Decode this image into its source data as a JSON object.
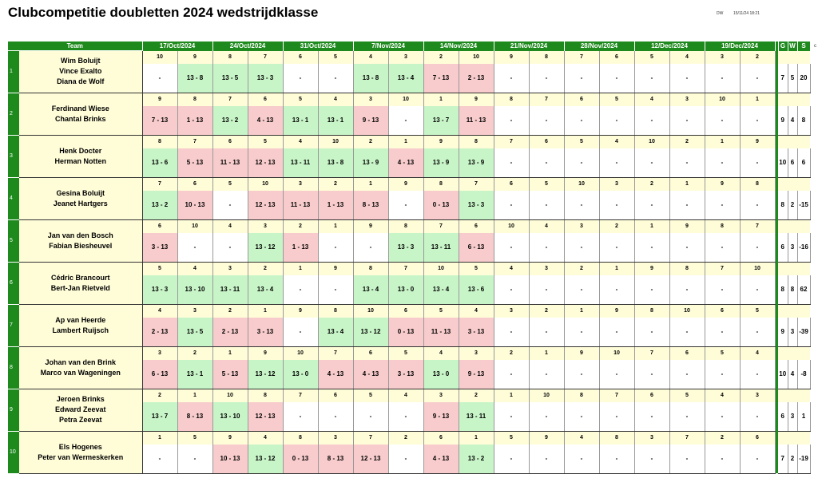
{
  "title": "Clubcompetitie doubletten 2024 wedstrijdklasse",
  "header_small": {
    "user": "DW",
    "datetime": "15/11/24 18:21"
  },
  "columns": {
    "team": "Team",
    "dates": [
      "17/Oct/2024",
      "24/Oct/2024",
      "31/Oct/2024",
      "7/Nov/2024",
      "14/Nov/2024",
      "21/Nov/2024",
      "28/Nov/2024",
      "12/Dec/2024",
      "19/Dec/2024"
    ],
    "stats": [
      "G",
      "W",
      "S"
    ],
    "extra": "c"
  },
  "teams": [
    {
      "num": "1",
      "players": [
        "Wim  Boluijt",
        "Vince  Exalto",
        "Diana de Wolf"
      ],
      "opp": [
        "10",
        "9",
        "8",
        "7",
        "6",
        "5",
        "4",
        "3",
        "2",
        "10",
        "9",
        "8",
        "7",
        "6",
        "5",
        "4",
        "3",
        "2"
      ],
      "scores": [
        [
          "-",
          "n"
        ],
        [
          "13 - 8",
          "w"
        ],
        [
          "13 - 5",
          "w"
        ],
        [
          "13 - 3",
          "w"
        ],
        [
          "-",
          "n"
        ],
        [
          "-",
          "n"
        ],
        [
          "13 - 8",
          "w"
        ],
        [
          "13 - 4",
          "w"
        ],
        [
          "7 - 13",
          "l"
        ],
        [
          "2 - 13",
          "l"
        ],
        [
          "-",
          "n"
        ],
        [
          "-",
          "n"
        ],
        [
          "-",
          "n"
        ],
        [
          "-",
          "n"
        ],
        [
          "-",
          "n"
        ],
        [
          "-",
          "n"
        ],
        [
          "-",
          "n"
        ],
        [
          "-",
          "n"
        ]
      ],
      "stats": [
        "7",
        "5",
        "20"
      ]
    },
    {
      "num": "2",
      "players": [
        "Ferdinand Wiese",
        "Chantal Brinks"
      ],
      "opp": [
        "9",
        "8",
        "7",
        "6",
        "5",
        "4",
        "3",
        "10",
        "1",
        "9",
        "8",
        "7",
        "6",
        "5",
        "4",
        "3",
        "10",
        "1"
      ],
      "scores": [
        [
          "7 - 13",
          "l"
        ],
        [
          "1 - 13",
          "l"
        ],
        [
          "13 - 2",
          "w"
        ],
        [
          "4 - 13",
          "l"
        ],
        [
          "13 - 1",
          "w"
        ],
        [
          "13 - 1",
          "w"
        ],
        [
          "9 - 13",
          "l"
        ],
        [
          "-",
          "n"
        ],
        [
          "13 - 7",
          "w"
        ],
        [
          "11 - 13",
          "l"
        ],
        [
          "-",
          "n"
        ],
        [
          "-",
          "n"
        ],
        [
          "-",
          "n"
        ],
        [
          "-",
          "n"
        ],
        [
          "-",
          "n"
        ],
        [
          "-",
          "n"
        ],
        [
          "-",
          "n"
        ],
        [
          "-",
          "n"
        ]
      ],
      "stats": [
        "9",
        "4",
        "8"
      ]
    },
    {
      "num": "3",
      "players": [
        "Henk  Docter",
        "Herman Notten"
      ],
      "opp": [
        "8",
        "7",
        "6",
        "5",
        "4",
        "10",
        "2",
        "1",
        "9",
        "8",
        "7",
        "6",
        "5",
        "4",
        "10",
        "2",
        "1",
        "9"
      ],
      "scores": [
        [
          "13 - 6",
          "w"
        ],
        [
          "5 - 13",
          "l"
        ],
        [
          "11 - 13",
          "l"
        ],
        [
          "12 - 13",
          "l"
        ],
        [
          "13 - 11",
          "w"
        ],
        [
          "13 - 8",
          "w"
        ],
        [
          "13 - 9",
          "w"
        ],
        [
          "4 - 13",
          "l"
        ],
        [
          "13 - 9",
          "w"
        ],
        [
          "13 - 9",
          "w"
        ],
        [
          "-",
          "n"
        ],
        [
          "-",
          "n"
        ],
        [
          "-",
          "n"
        ],
        [
          "-",
          "n"
        ],
        [
          "-",
          "n"
        ],
        [
          "-",
          "n"
        ],
        [
          "-",
          "n"
        ],
        [
          "-",
          "n"
        ]
      ],
      "stats": [
        "10",
        "6",
        "6"
      ]
    },
    {
      "num": "4",
      "players": [
        "Gesina Boluijt",
        "Jeanet  Hartgers"
      ],
      "opp": [
        "7",
        "6",
        "5",
        "10",
        "3",
        "2",
        "1",
        "9",
        "8",
        "7",
        "6",
        "5",
        "10",
        "3",
        "2",
        "1",
        "9",
        "8"
      ],
      "scores": [
        [
          "13 - 2",
          "w"
        ],
        [
          "10 - 13",
          "l"
        ],
        [
          "-",
          "n"
        ],
        [
          "12 - 13",
          "l"
        ],
        [
          "11 - 13",
          "l"
        ],
        [
          "1 - 13",
          "l"
        ],
        [
          "8 - 13",
          "l"
        ],
        [
          "-",
          "n"
        ],
        [
          "0 - 13",
          "l"
        ],
        [
          "13 - 3",
          "w"
        ],
        [
          "-",
          "n"
        ],
        [
          "-",
          "n"
        ],
        [
          "-",
          "n"
        ],
        [
          "-",
          "n"
        ],
        [
          "-",
          "n"
        ],
        [
          "-",
          "n"
        ],
        [
          "-",
          "n"
        ],
        [
          "-",
          "n"
        ]
      ],
      "stats": [
        "8",
        "2",
        "-15"
      ]
    },
    {
      "num": "5",
      "players": [
        "Jan van den Bosch",
        "Fabian  Biesheuvel"
      ],
      "opp": [
        "6",
        "10",
        "4",
        "3",
        "2",
        "1",
        "9",
        "8",
        "7",
        "6",
        "10",
        "4",
        "3",
        "2",
        "1",
        "9",
        "8",
        "7"
      ],
      "scores": [
        [
          "3 - 13",
          "l"
        ],
        [
          "-",
          "n"
        ],
        [
          "-",
          "n"
        ],
        [
          "13 - 12",
          "w"
        ],
        [
          "1 - 13",
          "l"
        ],
        [
          "-",
          "n"
        ],
        [
          "-",
          "n"
        ],
        [
          "13 - 3",
          "w"
        ],
        [
          "13 - 11",
          "w"
        ],
        [
          "6 - 13",
          "l"
        ],
        [
          "-",
          "n"
        ],
        [
          "-",
          "n"
        ],
        [
          "-",
          "n"
        ],
        [
          "-",
          "n"
        ],
        [
          "-",
          "n"
        ],
        [
          "-",
          "n"
        ],
        [
          "-",
          "n"
        ],
        [
          "-",
          "n"
        ]
      ],
      "stats": [
        "6",
        "3",
        "-16"
      ]
    },
    {
      "num": "6",
      "players": [
        "Cédric Brancourt",
        "Bert-Jan Rietveld"
      ],
      "opp": [
        "5",
        "4",
        "3",
        "2",
        "1",
        "9",
        "8",
        "7",
        "10",
        "5",
        "4",
        "3",
        "2",
        "1",
        "9",
        "8",
        "7",
        "10"
      ],
      "scores": [
        [
          "13 - 3",
          "w"
        ],
        [
          "13 - 10",
          "w"
        ],
        [
          "13 - 11",
          "w"
        ],
        [
          "13 - 4",
          "w"
        ],
        [
          "-",
          "n"
        ],
        [
          "-",
          "n"
        ],
        [
          "13 - 4",
          "w"
        ],
        [
          "13 - 0",
          "w"
        ],
        [
          "13 - 4",
          "w"
        ],
        [
          "13 - 6",
          "w"
        ],
        [
          "-",
          "n"
        ],
        [
          "-",
          "n"
        ],
        [
          "-",
          "n"
        ],
        [
          "-",
          "n"
        ],
        [
          "-",
          "n"
        ],
        [
          "-",
          "n"
        ],
        [
          "-",
          "n"
        ],
        [
          "-",
          "n"
        ]
      ],
      "stats": [
        "8",
        "8",
        "62"
      ]
    },
    {
      "num": "7",
      "players": [
        "Ap van Heerde",
        "Lambert Ruijsch"
      ],
      "opp": [
        "4",
        "3",
        "2",
        "1",
        "9",
        "8",
        "10",
        "6",
        "5",
        "4",
        "3",
        "2",
        "1",
        "9",
        "8",
        "10",
        "6",
        "5"
      ],
      "scores": [
        [
          "2 - 13",
          "l"
        ],
        [
          "13 - 5",
          "w"
        ],
        [
          "2 - 13",
          "l"
        ],
        [
          "3 - 13",
          "l"
        ],
        [
          "-",
          "n"
        ],
        [
          "13 - 4",
          "w"
        ],
        [
          "13 - 12",
          "w"
        ],
        [
          "0 - 13",
          "l"
        ],
        [
          "11 - 13",
          "l"
        ],
        [
          "3 - 13",
          "l"
        ],
        [
          "-",
          "n"
        ],
        [
          "-",
          "n"
        ],
        [
          "-",
          "n"
        ],
        [
          "-",
          "n"
        ],
        [
          "-",
          "n"
        ],
        [
          "-",
          "n"
        ],
        [
          "-",
          "n"
        ],
        [
          "-",
          "n"
        ]
      ],
      "stats": [
        "9",
        "3",
        "-39"
      ]
    },
    {
      "num": "8",
      "players": [
        "Johan van den Brink",
        "Marco van Wageningen"
      ],
      "opp": [
        "3",
        "2",
        "1",
        "9",
        "10",
        "7",
        "6",
        "5",
        "4",
        "3",
        "2",
        "1",
        "9",
        "10",
        "7",
        "6",
        "5",
        "4"
      ],
      "scores": [
        [
          "6 - 13",
          "l"
        ],
        [
          "13 - 1",
          "w"
        ],
        [
          "5 - 13",
          "l"
        ],
        [
          "13 - 12",
          "w"
        ],
        [
          "13 - 0",
          "w"
        ],
        [
          "4 - 13",
          "l"
        ],
        [
          "4 - 13",
          "l"
        ],
        [
          "3 - 13",
          "l"
        ],
        [
          "13 - 0",
          "w"
        ],
        [
          "9 - 13",
          "l"
        ],
        [
          "-",
          "n"
        ],
        [
          "-",
          "n"
        ],
        [
          "-",
          "n"
        ],
        [
          "-",
          "n"
        ],
        [
          "-",
          "n"
        ],
        [
          "-",
          "n"
        ],
        [
          "-",
          "n"
        ],
        [
          "-",
          "n"
        ]
      ],
      "stats": [
        "10",
        "4",
        "-8"
      ]
    },
    {
      "num": "9",
      "players": [
        "Jeroen Brinks",
        "Edward Zeevat",
        "Petra Zeevat"
      ],
      "opp": [
        "2",
        "1",
        "10",
        "8",
        "7",
        "6",
        "5",
        "4",
        "3",
        "2",
        "1",
        "10",
        "8",
        "7",
        "6",
        "5",
        "4",
        "3"
      ],
      "scores": [
        [
          "13 - 7",
          "w"
        ],
        [
          "8 - 13",
          "l"
        ],
        [
          "13 - 10",
          "w"
        ],
        [
          "12 - 13",
          "l"
        ],
        [
          "-",
          "n"
        ],
        [
          "-",
          "n"
        ],
        [
          "-",
          "n"
        ],
        [
          "-",
          "n"
        ],
        [
          "9 - 13",
          "l"
        ],
        [
          "13 - 11",
          "w"
        ],
        [
          "-",
          "n"
        ],
        [
          "-",
          "n"
        ],
        [
          "-",
          "n"
        ],
        [
          "-",
          "n"
        ],
        [
          "-",
          "n"
        ],
        [
          "-",
          "n"
        ],
        [
          "-",
          "n"
        ],
        [
          "-",
          "n"
        ]
      ],
      "stats": [
        "6",
        "3",
        "1"
      ]
    },
    {
      "num": "10",
      "players": [
        "Els Hogenes",
        "Peter van Wermeskerken"
      ],
      "opp": [
        "1",
        "5",
        "9",
        "4",
        "8",
        "3",
        "7",
        "2",
        "6",
        "1",
        "5",
        "9",
        "4",
        "8",
        "3",
        "7",
        "2",
        "6"
      ],
      "scores": [
        [
          "-",
          "n"
        ],
        [
          "-",
          "n"
        ],
        [
          "10 - 13",
          "l"
        ],
        [
          "13 - 12",
          "w"
        ],
        [
          "0 - 13",
          "l"
        ],
        [
          "8 - 13",
          "l"
        ],
        [
          "12 - 13",
          "l"
        ],
        [
          "-",
          "n"
        ],
        [
          "4 - 13",
          "l"
        ],
        [
          "13 - 2",
          "w"
        ],
        [
          "-",
          "n"
        ],
        [
          "-",
          "n"
        ],
        [
          "-",
          "n"
        ],
        [
          "-",
          "n"
        ],
        [
          "-",
          "n"
        ],
        [
          "-",
          "n"
        ],
        [
          "-",
          "n"
        ],
        [
          "-",
          "n"
        ]
      ],
      "stats": [
        "7",
        "2",
        "-19"
      ]
    }
  ]
}
